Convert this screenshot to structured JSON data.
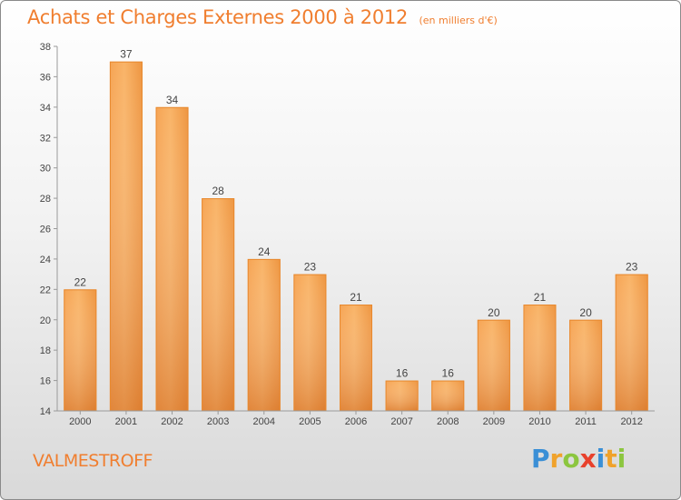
{
  "chart_data": {
    "type": "bar",
    "title": "Achats et Charges Externes 2000 à 2012",
    "subtitle": "(en milliers d'€)",
    "categories": [
      "2000",
      "2001",
      "2002",
      "2003",
      "2004",
      "2005",
      "2006",
      "2007",
      "2008",
      "2009",
      "2010",
      "2011",
      "2012"
    ],
    "values": [
      22,
      37,
      34,
      28,
      24,
      23,
      21,
      16,
      16,
      20,
      21,
      20,
      23
    ],
    "ylim": [
      14,
      38
    ],
    "yticks": [
      "14",
      "16",
      "18",
      "20",
      "22",
      "24",
      "26",
      "28",
      "30",
      "32",
      "34",
      "36",
      "38"
    ],
    "grid": false,
    "xlabel": "",
    "ylabel": ""
  },
  "commune": "VALMESTROFF",
  "brand": {
    "name": "Proxiti",
    "letters": [
      {
        "ch": "P",
        "color": "#3a8fd6"
      },
      {
        "ch": "r",
        "color": "#f0a22b"
      },
      {
        "ch": "o",
        "color": "#8cc63f"
      },
      {
        "ch": "x",
        "color": "#e8412c"
      },
      {
        "ch": "i",
        "color": "#3a8fd6"
      },
      {
        "ch": "t",
        "color": "#f0a22b"
      },
      {
        "ch": "i",
        "color": "#8cc63f"
      }
    ]
  },
  "colors": {
    "accent": "#f07e2f",
    "bar_light": "#f8ad5c",
    "bar_dark": "#d96f1c"
  }
}
